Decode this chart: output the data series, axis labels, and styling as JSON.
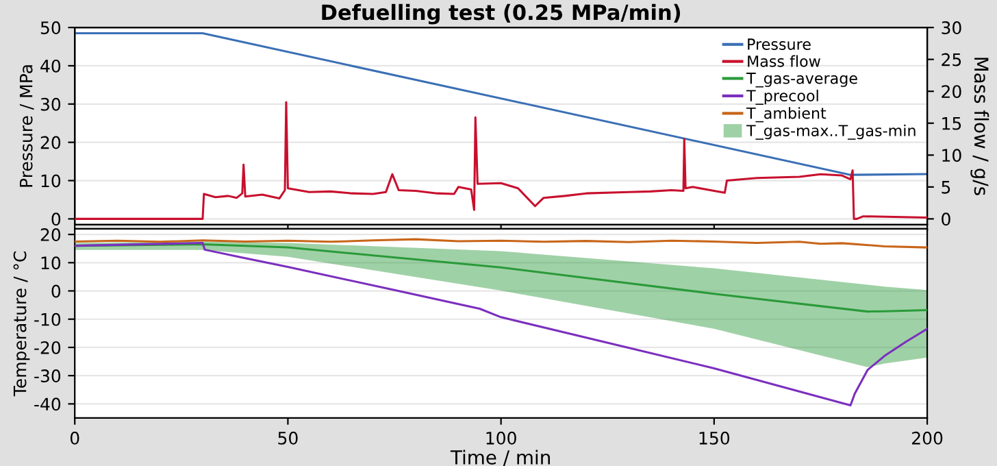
{
  "chart_data": [
    {
      "type": "line",
      "title": "Defuelling test (0.25 MPa/min)",
      "ylabel": "Pressure / MPa",
      "y2label": "Mass flow / g/s",
      "xlim": [
        0,
        200
      ],
      "xticks": [
        0,
        50,
        100,
        150,
        200
      ],
      "ylim": [
        -1.5,
        50
      ],
      "yticks": [
        0,
        10,
        20,
        30,
        40,
        50
      ],
      "y2lim": [
        -0.9,
        30
      ],
      "y2ticks": [
        0,
        5,
        10,
        15,
        20,
        25,
        30
      ],
      "tick_labels": "y",
      "grid": "y",
      "legend": "top right",
      "marker": "none",
      "line_style": "solid",
      "series": [
        {
          "name": "Pressure",
          "color": "#3a6fb5",
          "x": [
            0,
            30,
            182,
            200
          ],
          "values": [
            48.5,
            48.5,
            11.5,
            11.7
          ]
        },
        {
          "name": "Mass flow",
          "color": "#c8102e",
          "axis": "y2",
          "x": [
            0,
            30,
            30.3,
            33,
            36,
            38,
            39.3,
            39.6,
            40,
            44,
            48,
            49.3,
            49.6,
            50,
            55,
            60,
            65,
            70,
            73,
            74.5,
            76,
            80,
            85,
            89,
            90,
            93,
            93.7,
            94,
            94.5,
            100,
            104,
            108,
            110,
            115,
            120,
            130,
            135,
            140,
            142.8,
            143,
            143.3,
            145,
            150,
            152.5,
            153,
            160,
            170,
            175,
            180,
            182,
            182.5,
            182.8,
            183.5,
            185,
            200
          ],
          "values": [
            0,
            0,
            3.9,
            3.4,
            3.6,
            3.3,
            4.0,
            8.5,
            3.5,
            3.8,
            3.2,
            4.5,
            18.3,
            4.8,
            4.2,
            4.3,
            4.0,
            3.9,
            4.2,
            7.0,
            4.5,
            4.4,
            4.0,
            3.9,
            5.0,
            4.6,
            1.4,
            15.9,
            5.5,
            5.6,
            4.8,
            2.0,
            3.3,
            3.6,
            4.0,
            4.2,
            4.3,
            4.5,
            4.4,
            12.5,
            4.8,
            5.0,
            4.4,
            4.1,
            6.0,
            6.4,
            6.6,
            7.0,
            6.8,
            6.2,
            7.6,
            0,
            0,
            0.4,
            0.2
          ]
        }
      ]
    },
    {
      "type": "line",
      "xlabel": "Time / min",
      "ylabel": "Temperature / °C",
      "xlim": [
        0,
        200
      ],
      "xticks": [
        0,
        50,
        100,
        150,
        200
      ],
      "ylim": [
        -45,
        22
      ],
      "yticks": [
        -40,
        -30,
        -20,
        -10,
        0,
        10,
        20
      ],
      "grid": "y",
      "legend": "top right",
      "marker": "none",
      "line_style": "solid",
      "annotations": [
        "T_gas-max..T_gas-min"
      ],
      "series": [
        {
          "name": "T_gas-average",
          "color": "#2a9a3a",
          "x": [
            0,
            30,
            50,
            100,
            150,
            186,
            190,
            200
          ],
          "values": [
            16,
            16.5,
            15.4,
            8.3,
            -1,
            -7.3,
            -7.2,
            -6.8
          ],
          "upper": [
            17,
            17.5,
            17,
            14.1,
            8,
            2.2,
            1.5,
            0.3
          ],
          "lower": [
            14.5,
            14.5,
            12.1,
            0.1,
            -13.4,
            -27,
            -25.7,
            -23.6
          ]
        },
        {
          "name": "T_precool",
          "color": "#7b2fbe",
          "x": [
            0,
            30,
            30.5,
            40,
            50,
            75,
            95,
            100,
            150,
            182,
            183,
            186,
            190,
            195,
            200
          ],
          "values": [
            16,
            17,
            14.6,
            11.6,
            8.5,
            0.3,
            -6.3,
            -9.3,
            -27.4,
            -40.5,
            -36.4,
            -28,
            -23,
            -18,
            -13.4
          ]
        },
        {
          "name": "T_ambient",
          "color": "#c8661a",
          "x": [
            0,
            10,
            20,
            30,
            40,
            50,
            60,
            70,
            80,
            90,
            100,
            110,
            120,
            130,
            140,
            150,
            160,
            170,
            175,
            180,
            190,
            200
          ],
          "values": [
            17.5,
            17.8,
            17.4,
            17.9,
            17.5,
            17.8,
            17.4,
            17.9,
            18.3,
            17.6,
            17.8,
            17.4,
            17.7,
            17.3,
            17.8,
            17.5,
            17.0,
            17.4,
            16.7,
            16.9,
            15.8,
            15.4
          ]
        }
      ]
    }
  ]
}
